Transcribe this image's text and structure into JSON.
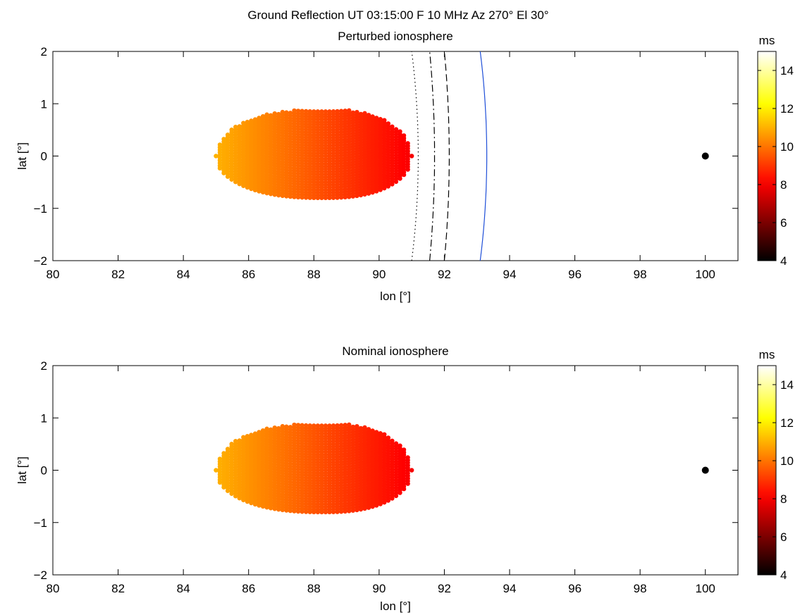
{
  "figure": {
    "title": "Ground Reflection UT 03:15:00  F 10 MHz   Az 270°  El 30°"
  },
  "chart_data": [
    {
      "type": "scatter",
      "title": "Perturbed ionosphere",
      "xlabel": "lon [°]",
      "ylabel": "lat [°]",
      "xlim": [
        80,
        101
      ],
      "ylim": [
        -2,
        2
      ],
      "xticks": [
        "80",
        "82",
        "84",
        "86",
        "88",
        "90",
        "92",
        "94",
        "96",
        "98",
        "100"
      ],
      "yticks": [
        "−2",
        "−1",
        "0",
        "1",
        "2"
      ],
      "grid": false,
      "colorbar": {
        "label": "ms",
        "range": [
          4,
          15
        ],
        "ticks": [
          "4",
          "6",
          "8",
          "10",
          "12",
          "14"
        ],
        "colormap": "hot"
      },
      "reflection_region": {
        "lon_range": [
          85.0,
          91.0
        ],
        "lat_max": 0.9,
        "lat_min": -0.8,
        "group_delay_ms_at_lon_min": 11.0,
        "group_delay_ms_at_lon_max": 8.0
      },
      "transmitter": {
        "lon": 100,
        "lat": 0
      },
      "contours": [
        {
          "style": "dotted",
          "color": "#000000",
          "lon_at_lat_0": 91.2,
          "lon_at_lat_2": 91.0
        },
        {
          "style": "dash-dot",
          "color": "#000000",
          "lon_at_lat_0": 91.7,
          "lon_at_lat_2": 91.55
        },
        {
          "style": "dashed",
          "color": "#000000",
          "lon_at_lat_0": 92.15,
          "lon_at_lat_2": 92.0
        },
        {
          "style": "solid",
          "color": "#1f4fd8",
          "lon_at_lat_0": 93.3,
          "lon_at_lat_2": 93.1
        }
      ]
    },
    {
      "type": "scatter",
      "title": "Nominal ionosphere",
      "xlabel": "lon [°]",
      "ylabel": "lat [°]",
      "xlim": [
        80,
        101
      ],
      "ylim": [
        -2,
        2
      ],
      "xticks": [
        "80",
        "82",
        "84",
        "86",
        "88",
        "90",
        "92",
        "94",
        "96",
        "98",
        "100"
      ],
      "yticks": [
        "−2",
        "−1",
        "0",
        "1",
        "2"
      ],
      "grid": false,
      "colorbar": {
        "label": "ms",
        "range": [
          4,
          15
        ],
        "ticks": [
          "4",
          "6",
          "8",
          "10",
          "12",
          "14"
        ],
        "colormap": "hot"
      },
      "reflection_region": {
        "lon_range": [
          85.0,
          91.0
        ],
        "lat_max": 0.9,
        "lat_min": -0.8,
        "group_delay_ms_at_lon_min": 11.0,
        "group_delay_ms_at_lon_max": 8.0
      },
      "transmitter": {
        "lon": 100,
        "lat": 0
      },
      "contours": []
    }
  ]
}
